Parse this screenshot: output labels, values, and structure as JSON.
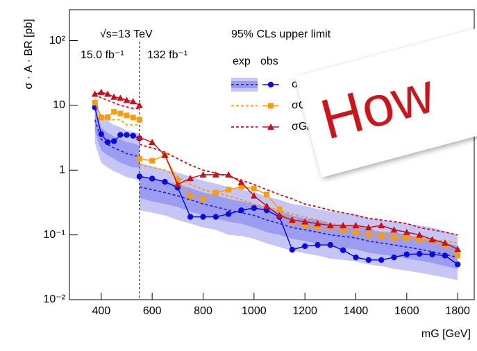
{
  "chart_data": {
    "type": "line",
    "log_y": true,
    "ylabel": "σ · A · BR [pb]",
    "xlabel": "mG [GeV]",
    "xlim": [
      275,
      1865
    ],
    "ylim": [
      0.01,
      300
    ],
    "xticks": [
      400,
      600,
      800,
      1000,
      1200,
      1400,
      1600,
      1800
    ],
    "yticks": [
      {
        "value": 0.01,
        "label": "10⁻²"
      },
      {
        "value": 0.1,
        "label": "10⁻¹"
      },
      1,
      10,
      {
        "value": 100,
        "label": "10²"
      }
    ],
    "divider_x": 550,
    "annotations": {
      "energy": "√s=13 TeV",
      "lumi_low": "15.0 fb⁻¹",
      "lumi_high": "132 fb⁻¹",
      "limit": "95% CLs upper limit",
      "exp_header": "exp",
      "obs_header": "obs"
    },
    "overlay": "How",
    "x": [
      375,
      400,
      425,
      450,
      475,
      500,
      525,
      550,
      550,
      550,
      600,
      650,
      700,
      750,
      800,
      850,
      900,
      950,
      1000,
      1050,
      1100,
      1150,
      1200,
      1250,
      1300,
      1350,
      1400,
      1450,
      1500,
      1550,
      1600,
      1650,
      1700,
      1750,
      1800
    ],
    "bands": [
      {
        "color": "#c6c6f6",
        "low": [
          2.6,
          1.3,
          1.1,
          0.96,
          0.87,
          0.78,
          0.74,
          0.7,
          null,
          0.24,
          0.22,
          0.2,
          0.17,
          0.15,
          0.13,
          0.12,
          0.1,
          0.096,
          0.087,
          0.074,
          0.065,
          0.057,
          0.052,
          0.048,
          0.043,
          0.041,
          0.039,
          0.035,
          0.033,
          0.03,
          0.028,
          0.026,
          0.024,
          0.022,
          0.02
        ],
        "high": [
          14,
          6.9,
          5.8,
          5,
          4.6,
          4.1,
          3.9,
          3.7,
          null,
          1.3,
          1.15,
          1.0,
          0.92,
          0.8,
          0.69,
          0.62,
          0.55,
          0.5,
          0.46,
          0.39,
          0.35,
          0.3,
          0.28,
          0.25,
          0.23,
          0.22,
          0.21,
          0.18,
          0.17,
          0.16,
          0.15,
          0.14,
          0.13,
          0.115,
          0.1
        ]
      },
      {
        "color": "#9c9cf0",
        "low": [
          4,
          2,
          1.7,
          1.5,
          1.3,
          1.2,
          1.1,
          1.1,
          null,
          0.37,
          0.33,
          0.3,
          0.27,
          0.23,
          0.2,
          0.18,
          0.16,
          0.15,
          0.13,
          0.11,
          0.1,
          0.087,
          0.08,
          0.073,
          0.067,
          0.063,
          0.06,
          0.053,
          0.05,
          0.047,
          0.043,
          0.04,
          0.037,
          0.033,
          0.03
        ],
        "high": [
          9,
          4.5,
          3.8,
          3.3,
          3,
          2.7,
          2.6,
          2.4,
          null,
          0.83,
          0.75,
          0.68,
          0.6,
          0.53,
          0.45,
          0.41,
          0.36,
          0.33,
          0.3,
          0.26,
          0.23,
          0.2,
          0.18,
          0.17,
          0.15,
          0.14,
          0.14,
          0.12,
          0.11,
          0.11,
          0.1,
          0.09,
          0.083,
          0.075,
          0.068
        ]
      }
    ],
    "series": [
      {
        "name": "σ",
        "color": "#0a0ae0",
        "exp_color": "#2a2ab8",
        "marker": "circle",
        "exp": [
          6,
          3,
          2.5,
          2.2,
          2,
          1.8,
          1.7,
          1.6,
          null,
          0.55,
          0.5,
          0.45,
          0.4,
          0.35,
          0.3,
          0.27,
          0.24,
          0.22,
          0.2,
          0.17,
          0.15,
          0.13,
          0.12,
          0.11,
          0.1,
          0.095,
          0.09,
          0.08,
          0.075,
          0.07,
          0.065,
          0.06,
          0.055,
          0.05,
          0.045
        ],
        "obs": [
          9.3,
          3.6,
          2.7,
          2.8,
          3.5,
          3.5,
          3.4,
          3.1,
          null,
          0.8,
          0.74,
          0.66,
          0.54,
          0.19,
          0.19,
          0.19,
          0.21,
          0.24,
          0.26,
          0.24,
          0.19,
          0.059,
          0.067,
          0.07,
          0.07,
          0.058,
          0.045,
          0.041,
          0.041,
          0.045,
          0.05,
          0.051,
          0.05,
          0.048,
          0.035
        ]
      },
      {
        "name": "σG",
        "color": "#f59d0c",
        "exp_color": "#f59d0c",
        "marker": "square",
        "exp": [
          10,
          7,
          6,
          6,
          6,
          5,
          5,
          5,
          null,
          1.2,
          1.1,
          1.0,
          0.8,
          0.6,
          0.5,
          0.45,
          0.4,
          0.35,
          0.3,
          0.27,
          0.24,
          0.21,
          0.19,
          0.17,
          0.15,
          0.14,
          0.13,
          0.12,
          0.11,
          0.1,
          0.095,
          0.09,
          0.085,
          0.08,
          0.075
        ],
        "obs": [
          11,
          6.5,
          6.6,
          8,
          7.5,
          7,
          6.5,
          6,
          null,
          1.5,
          1.4,
          1.7,
          0.69,
          0.4,
          0.36,
          0.45,
          0.5,
          0.55,
          0.52,
          0.42,
          0.25,
          0.16,
          0.14,
          0.13,
          0.13,
          0.12,
          0.11,
          0.1,
          0.095,
          0.09,
          0.09,
          0.085,
          0.08,
          0.07,
          0.048
        ]
      },
      {
        "name": "σG/",
        "color": "#c8101a",
        "exp_color": "#c8101a",
        "marker": "triangle",
        "exp": [
          15,
          13,
          12,
          11,
          10,
          9.5,
          9,
          9,
          null,
          2.5,
          2.2,
          1.9,
          1.5,
          1.2,
          1.0,
          0.9,
          0.8,
          0.7,
          0.6,
          0.5,
          0.42,
          0.36,
          0.3,
          0.27,
          0.24,
          0.22,
          0.2,
          0.18,
          0.17,
          0.16,
          0.15,
          0.13,
          0.12,
          0.11,
          0.1
        ],
        "obs": [
          15,
          16,
          15,
          13.5,
          13,
          12,
          11.5,
          10,
          null,
          3.2,
          2.7,
          1.7,
          0.6,
          0.75,
          0.85,
          0.85,
          0.85,
          0.65,
          0.4,
          0.28,
          0.2,
          0.17,
          0.16,
          0.15,
          0.14,
          0.14,
          0.14,
          0.13,
          0.14,
          0.12,
          0.11,
          0.1,
          0.085,
          0.075,
          0.06
        ]
      }
    ]
  }
}
